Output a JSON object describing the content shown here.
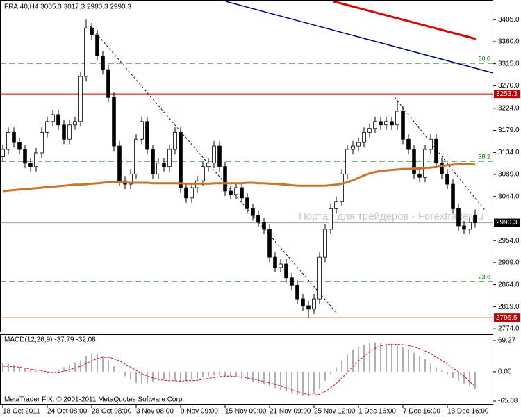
{
  "chart_data": {
    "type": "candlestick",
    "title": "FRA.40,H4  3005.3 3017.3 2980.3 2990.3",
    "watermark": "Портал для трейдеров - Forextrader.ru",
    "footer": "MetaTrader FIX, © 2001-2011 MetaQuotes Software Corp.",
    "bull_color": "#ffffff",
    "bear_color": "#000000",
    "xlim": [
      -0.5,
      88
    ],
    "xticks": [
      {
        "value": 0,
        "label": "18 Oct 2011"
      },
      {
        "value": 8,
        "label": "24 Oct 08:00"
      },
      {
        "value": 16,
        "label": "28 Oct 08:00"
      },
      {
        "value": 24,
        "label": "3 Nov 08:00"
      },
      {
        "value": 32,
        "label": "9 Nov 09:00"
      },
      {
        "value": 40,
        "label": "15 Nov 09:00"
      },
      {
        "value": 48,
        "label": "21 Nov 09:00"
      },
      {
        "value": 56,
        "label": "25 Nov 12:00"
      },
      {
        "value": 64,
        "label": "1 Dec 16:00"
      },
      {
        "value": 72,
        "label": "7 Dec 16:00"
      },
      {
        "value": 80,
        "label": "13 Dec 16:00"
      }
    ],
    "ylim": [
      2767,
      3445
    ],
    "yticks": [
      {
        "value": 3405,
        "label": "3405.0"
      },
      {
        "value": 3360,
        "label": "3360.0"
      },
      {
        "value": 3315,
        "label": "3315.0"
      },
      {
        "value": 3270,
        "label": "3270.0"
      },
      {
        "value": 3224,
        "label": "3224.0"
      },
      {
        "value": 3179,
        "label": "3179.0"
      },
      {
        "value": 3134,
        "label": "3134.0"
      },
      {
        "value": 3089,
        "label": "3089.0"
      },
      {
        "value": 3044,
        "label": "3044.0"
      },
      {
        "value": 2954,
        "label": "2954.0"
      },
      {
        "value": 2909,
        "label": "2909.0"
      },
      {
        "value": 2864,
        "label": "2864.0"
      },
      {
        "value": 2819,
        "label": "2819.0"
      },
      {
        "value": 2774,
        "label": "2774.0"
      }
    ],
    "open": [
      3125,
      3140,
      3175,
      3154,
      3140,
      3112,
      3105,
      3133,
      3175,
      3197,
      3211,
      3190,
      3161,
      3190,
      3197,
      3289,
      3388,
      3374,
      3331,
      3303,
      3246,
      3147,
      3076,
      3069,
      3090,
      3161,
      3197,
      3140,
      3090,
      3112,
      3105,
      3140,
      3175,
      3062,
      3041,
      3062,
      3076,
      3105,
      3112,
      3147,
      3105,
      3055,
      3048,
      3062,
      3041,
      3019,
      3005,
      2991,
      2977,
      2920,
      2899,
      2906,
      2878,
      2863,
      2835,
      2821,
      2814,
      2835,
      2920,
      2977,
      3019,
      3034,
      3090,
      3140,
      3147,
      3154,
      3175,
      3183,
      3197,
      3190,
      3197,
      3190,
      3218,
      3161,
      3140,
      3090,
      3083,
      3140,
      3161,
      3112,
      3090,
      3069,
      3019,
      2984,
      2977,
      3005.3
    ],
    "high": [
      3150,
      3185,
      3185,
      3164,
      3150,
      3122,
      3143,
      3185,
      3207,
      3221,
      3221,
      3200,
      3200,
      3207,
      3299,
      3405,
      3398,
      3384,
      3341,
      3313,
      3256,
      3157,
      3086,
      3100,
      3171,
      3207,
      3207,
      3150,
      3122,
      3122,
      3150,
      3185,
      3185,
      3072,
      3072,
      3086,
      3115,
      3122,
      3157,
      3157,
      3115,
      3065,
      3072,
      3072,
      3051,
      3029,
      3015,
      3001,
      2987,
      2930,
      2916,
      2916,
      2888,
      2873,
      2845,
      2831,
      2845,
      2930,
      2987,
      3029,
      3044,
      3100,
      3150,
      3157,
      3164,
      3185,
      3193,
      3207,
      3207,
      3207,
      3207,
      3240,
      3228,
      3171,
      3150,
      3100,
      3150,
      3171,
      3171,
      3122,
      3100,
      3079,
      3029,
      2994,
      3001,
      3017.3
    ],
    "low": [
      3115,
      3130,
      3144,
      3130,
      3102,
      3095,
      3095,
      3123,
      3165,
      3187,
      3180,
      3151,
      3151,
      3180,
      3187,
      3279,
      3364,
      3321,
      3293,
      3236,
      3137,
      3066,
      3059,
      3059,
      3080,
      3151,
      3130,
      3080,
      3080,
      3095,
      3095,
      3130,
      3052,
      3031,
      3031,
      3052,
      3066,
      3095,
      3102,
      3095,
      3045,
      3038,
      3038,
      3031,
      3009,
      2995,
      2981,
      2967,
      2910,
      2889,
      2889,
      2868,
      2853,
      2825,
      2811,
      2796.5,
      2804,
      2825,
      2910,
      2967,
      3009,
      3024,
      3080,
      3130,
      3137,
      3144,
      3165,
      3173,
      3180,
      3180,
      3180,
      3180,
      3151,
      3130,
      3080,
      3073,
      3073,
      3130,
      3102,
      3080,
      3059,
      3009,
      2974,
      2967,
      2967,
      2980.3
    ],
    "close": [
      3140,
      3175,
      3154,
      3140,
      3112,
      3105,
      3133,
      3175,
      3197,
      3211,
      3190,
      3161,
      3190,
      3197,
      3289,
      3388,
      3374,
      3331,
      3303,
      3246,
      3147,
      3076,
      3069,
      3090,
      3161,
      3197,
      3140,
      3090,
      3112,
      3105,
      3140,
      3175,
      3062,
      3041,
      3062,
      3076,
      3105,
      3112,
      3147,
      3105,
      3055,
      3048,
      3062,
      3041,
      3019,
      3005,
      2991,
      2977,
      2920,
      2899,
      2906,
      2878,
      2863,
      2835,
      2821,
      2814,
      2835,
      2920,
      2977,
      3019,
      3034,
      3090,
      3140,
      3147,
      3154,
      3175,
      3183,
      3197,
      3190,
      3197,
      3190,
      3218,
      3161,
      3140,
      3090,
      3083,
      3140,
      3161,
      3112,
      3090,
      3069,
      3019,
      2984,
      2977,
      2991,
      2990.3
    ],
    "ma": {
      "color": "#c8752a",
      "values": [
        3055,
        3056,
        3057,
        3058,
        3059,
        3060,
        3061,
        3062,
        3063,
        3064,
        3065,
        3066,
        3067,
        3068,
        3068,
        3069,
        3070,
        3071,
        3072,
        3073,
        3073,
        3073,
        3073,
        3072,
        3072,
        3072,
        3072,
        3071,
        3071,
        3071,
        3071,
        3071,
        3071,
        3070,
        3070,
        3070,
        3070,
        3070,
        3071,
        3071,
        3071,
        3071,
        3071,
        3071,
        3072,
        3072,
        3071,
        3071,
        3070,
        3070,
        3069,
        3068,
        3067,
        3066,
        3066,
        3066,
        3066,
        3066,
        3066,
        3067,
        3068,
        3070,
        3073,
        3077,
        3082,
        3087,
        3091,
        3094,
        3096,
        3097,
        3098,
        3099,
        3100,
        3100,
        3101,
        3101,
        3102,
        3103,
        3104,
        3106,
        3108,
        3109,
        3110,
        3110,
        3110,
        3109
      ]
    },
    "price_lines": [
      {
        "value": 3253.3,
        "color": "#c00000"
      },
      {
        "value": 2990.3,
        "color": "#a0a0a0"
      },
      {
        "value": 2796.5,
        "color": "#c00000"
      }
    ],
    "levels": [
      {
        "label": "50.0",
        "value": 3316,
        "color": "#006400"
      },
      {
        "label": "38.2",
        "value": 3116,
        "color": "#006400"
      },
      {
        "label": "23.6",
        "value": 2870.5,
        "color": "#006400"
      }
    ],
    "macd": {
      "label": "MACD(12,26,9) -37.79 -32.08",
      "ylim": [
        -65.08,
        69.27
      ],
      "yticks": [
        69.27,
        {
          "value": 0,
          "label": "0.00"
        },
        -65.08
      ],
      "histogram": {
        "color": "#b0b0b0",
        "values": [
          20,
          18,
          15,
          12,
          8,
          5,
          2,
          0,
          -4,
          0,
          5,
          10,
          15,
          20,
          25,
          35,
          40,
          40,
          35,
          25,
          12,
          0,
          -10,
          -18,
          -25,
          -28,
          -26,
          -22,
          -20,
          -18,
          -18,
          -20,
          -22,
          -20,
          -18,
          -15,
          -12,
          -10,
          -8,
          -8,
          -10,
          -10,
          -12,
          -15,
          -18,
          -22,
          -25,
          -28,
          -32,
          -36,
          -40,
          -44,
          -48,
          -52,
          -54,
          -55,
          -50,
          -38,
          -20,
          -5,
          10,
          25,
          38,
          48,
          55,
          60,
          64,
          65,
          64,
          62,
          60,
          58,
          55,
          50,
          42,
          35,
          28,
          18,
          10,
          2,
          -6,
          -14,
          -20,
          -26,
          -32,
          -37.79
        ]
      },
      "signal": {
        "color": "#e00000",
        "values": [
          12,
          12,
          11,
          10,
          8,
          6,
          4,
          2,
          0,
          -2,
          -1,
          1,
          4,
          8,
          12,
          18,
          24,
          29,
          32,
          32,
          29,
          24,
          17,
          10,
          3,
          -4,
          -10,
          -14,
          -17,
          -19,
          -20,
          -20,
          -21,
          -20,
          -20,
          -19,
          -17,
          -15,
          -13,
          -11,
          -10,
          -10,
          -11,
          -12,
          -14,
          -16,
          -19,
          -22,
          -25,
          -28,
          -32,
          -36,
          -40,
          -44,
          -48,
          -51,
          -52,
          -50,
          -44,
          -36,
          -26,
          -14,
          -2,
          12,
          24,
          34,
          44,
          52,
          57,
          60,
          61,
          61,
          60,
          58,
          55,
          51,
          46,
          40,
          33,
          25,
          17,
          8,
          0,
          -10,
          -22,
          -32.08
        ]
      }
    }
  }
}
